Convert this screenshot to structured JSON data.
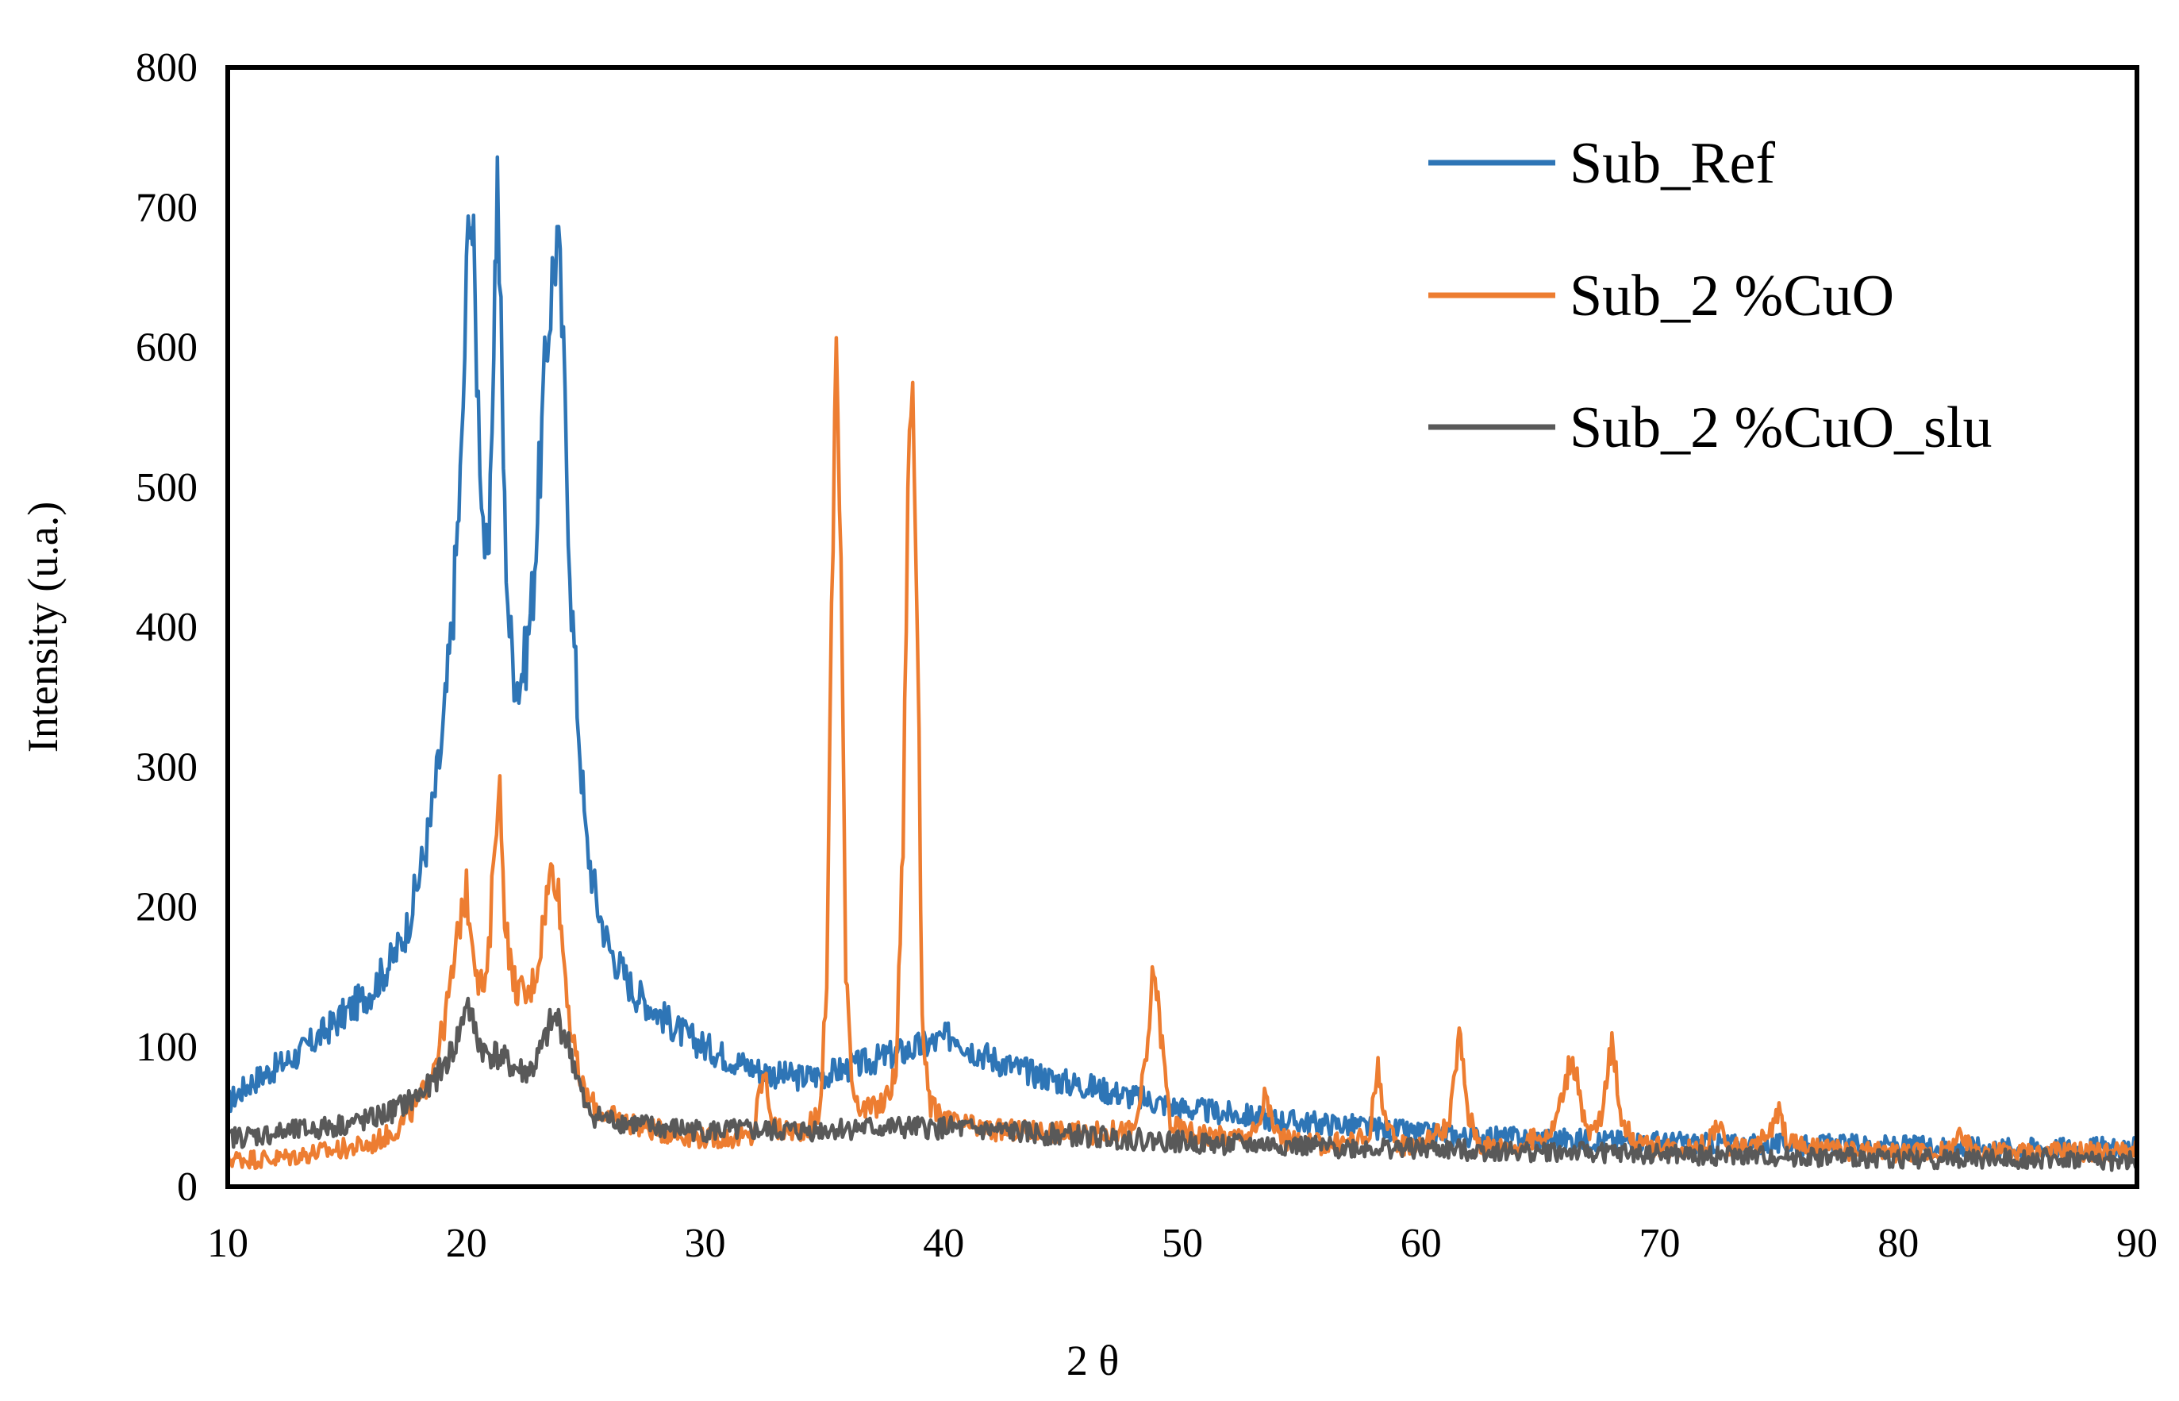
{
  "chart_data": {
    "type": "line",
    "title": "",
    "xlabel": "2 θ",
    "ylabel": "Intensity (u.a.)",
    "xlim": [
      10,
      90
    ],
    "ylim": [
      0,
      800
    ],
    "x_ticks": [
      10,
      20,
      30,
      40,
      50,
      60,
      70,
      80,
      90
    ],
    "y_ticks": [
      0,
      100,
      200,
      300,
      400,
      500,
      600,
      700,
      800
    ],
    "grid": false,
    "legend_position": "top-right",
    "series": [
      {
        "name": "Sub_Ref",
        "color": "#2e75b6",
        "x": [
          10,
          11,
          12,
          13,
          14,
          15,
          16,
          17,
          17.5,
          18,
          18.5,
          19,
          19.4,
          19.8,
          20.0,
          20.15,
          20.3,
          20.5,
          20.7,
          20.9,
          21.0,
          21.15,
          21.3,
          21.45,
          21.6,
          21.8,
          22.0,
          22.2,
          22.5,
          22.8,
          23.1,
          23.4,
          23.6,
          23.8,
          24.0,
          24.2,
          24.4,
          24.7,
          25.0,
          25.5,
          26,
          26.5,
          27,
          28,
          29,
          30,
          31,
          32,
          33,
          34,
          35,
          36,
          37,
          38,
          39,
          40,
          40.5,
          41,
          42,
          43,
          44,
          45,
          46,
          47,
          48,
          49,
          50,
          51,
          52,
          53,
          54,
          55,
          56,
          57,
          58,
          59,
          60,
          62,
          64,
          66,
          68,
          70,
          72,
          74,
          76,
          78,
          80,
          82,
          84,
          86,
          88,
          90
        ],
        "y": [
          60,
          75,
          85,
          95,
          110,
          125,
          140,
          165,
          185,
          220,
          260,
          320,
          400,
          520,
          640,
          720,
          660,
          560,
          480,
          430,
          480,
          620,
          720,
          610,
          480,
          400,
          370,
          360,
          380,
          430,
          520,
          610,
          650,
          680,
          620,
          520,
          420,
          330,
          250,
          200,
          170,
          155,
          140,
          125,
          110,
          100,
          92,
          85,
          80,
          78,
          80,
          85,
          90,
          95,
          100,
          105,
          110,
          100,
          92,
          85,
          80,
          75,
          72,
          68,
          64,
          60,
          56,
          54,
          52,
          50,
          48,
          46,
          45,
          44,
          42,
          40,
          38,
          36,
          35,
          34,
          33,
          32,
          31,
          30,
          30,
          30,
          29,
          29,
          28,
          28,
          28,
          28
        ]
      },
      {
        "name": "Sub_2 %CuO",
        "color": "#ed7d31",
        "x": [
          10,
          12,
          14,
          16,
          17,
          18,
          18.5,
          19,
          19.5,
          19.8,
          20.0,
          20.2,
          20.5,
          20.8,
          21.0,
          21.2,
          21.4,
          21.6,
          21.9,
          22.2,
          22.6,
          23.0,
          23.3,
          23.6,
          23.8,
          24.1,
          24.4,
          24.7,
          25.0,
          25.5,
          26,
          27,
          28,
          30,
          32,
          32.3,
          32.5,
          32.8,
          33,
          34,
          34.8,
          35.1,
          35.3,
          35.5,
          35.7,
          35.9,
          36.2,
          36.6,
          37,
          37.5,
          38.0,
          38.3,
          38.5,
          38.7,
          38.9,
          39.1,
          39.4,
          39.8,
          40.5,
          42,
          44,
          46,
          48,
          48.5,
          48.8,
          49.1,
          49.5,
          50,
          52,
          53.2,
          53.5,
          53.8,
          54.5,
          56,
          57.8,
          58.2,
          58.6,
          59,
          60,
          61.2,
          61.6,
          62.0,
          62.5,
          64,
          65.5,
          66.0,
          66.3,
          66.6,
          67.0,
          67.6,
          68.0,
          68.4,
          69,
          70,
          71,
          72.0,
          72.4,
          72.8,
          74,
          74.7,
          75.0,
          75.3,
          76,
          78,
          80,
          82,
          82.5,
          83,
          84,
          86,
          88,
          90
        ],
        "y": [
          20,
          20,
          25,
          30,
          40,
          60,
          80,
          110,
          160,
          200,
          210,
          185,
          150,
          140,
          180,
          260,
          280,
          200,
          150,
          140,
          135,
          160,
          200,
          230,
          220,
          160,
          110,
          80,
          65,
          55,
          50,
          45,
          40,
          35,
          35,
          70,
          80,
          50,
          40,
          40,
          50,
          150,
          400,
          610,
          450,
          150,
          70,
          55,
          55,
          60,
          80,
          250,
          500,
          580,
          400,
          120,
          60,
          50,
          45,
          40,
          40,
          38,
          40,
          90,
          160,
          110,
          45,
          40,
          35,
          40,
          70,
          40,
          32,
          30,
          35,
          85,
          40,
          30,
          30,
          45,
          110,
          50,
          30,
          28,
          40,
          70,
          95,
          70,
          35,
          50,
          105,
          50,
          30,
          28,
          28,
          30,
          45,
          30,
          28,
          40,
          55,
          35,
          28,
          25,
          25,
          25,
          35,
          28,
          25,
          25,
          25,
          25
        ]
      },
      {
        "name": "Sub_2 %CuO_slu",
        "color": "#595959",
        "x": [
          10,
          12,
          14,
          16,
          17,
          18,
          18.5,
          19,
          19.5,
          19.8,
          20.0,
          20.2,
          20.5,
          20.8,
          21.2,
          21.6,
          22.0,
          22.4,
          22.8,
          23.2,
          23.5,
          23.8,
          24.1,
          24.4,
          24.7,
          25.0,
          25.5,
          26,
          27,
          28,
          30,
          32,
          34,
          36,
          38,
          40,
          42,
          44,
          46,
          48,
          50,
          52,
          54,
          56,
          58,
          60,
          62,
          64,
          66,
          68,
          70,
          72,
          74,
          76,
          78,
          80,
          82,
          84,
          86,
          88,
          89,
          90
        ],
        "y": [
          35,
          38,
          42,
          48,
          55,
          65,
          72,
          85,
          100,
          115,
          135,
          120,
          105,
          95,
          95,
          90,
          85,
          82,
          85,
          100,
          115,
          120,
          110,
          95,
          75,
          55,
          50,
          48,
          45,
          42,
          40,
          40,
          40,
          42,
          42,
          42,
          40,
          38,
          36,
          34,
          32,
          30,
          30,
          28,
          28,
          27,
          26,
          25,
          25,
          24,
          23,
          22,
          22,
          21,
          21,
          20,
          20,
          20,
          20,
          19,
          18,
          18
        ]
      }
    ]
  }
}
